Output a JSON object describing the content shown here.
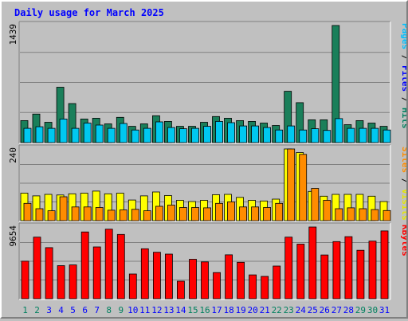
{
  "chart_data": {
    "type": "bar",
    "title": "Daily usage for March 2025",
    "x": [
      "1",
      "2",
      "3",
      "4",
      "5",
      "6",
      "7",
      "8",
      "9",
      "10",
      "11",
      "12",
      "13",
      "14",
      "15",
      "16",
      "17",
      "18",
      "19",
      "20",
      "21",
      "22",
      "23",
      "24",
      "25",
      "26",
      "27",
      "28",
      "29",
      "30",
      "31"
    ],
    "weekend_days": [
      "1",
      "2",
      "8",
      "9",
      "15",
      "16",
      "22",
      "23",
      "29",
      "30"
    ],
    "panels": [
      {
        "ymax_label": "1439",
        "ylim": [
          0,
          1439
        ],
        "series": [
          {
            "name": "Hits",
            "color": "#1a7f5a",
            "values": [
              270,
              350,
              250,
              680,
              480,
              290,
              300,
              230,
              310,
              200,
              230,
              330,
              260,
              200,
              200,
              250,
              320,
              300,
              270,
              260,
              240,
              210,
              630,
              490,
              280,
              280,
              1439,
              220,
              270,
              240,
              200
            ]
          },
          {
            "name": "Files",
            "color": "#00c8f0",
            "values": [
              175,
              195,
              175,
              290,
              175,
              240,
              215,
              175,
              235,
              155,
              175,
              255,
              185,
              170,
              175,
              200,
              260,
              245,
              205,
              205,
              185,
              155,
              205,
              155,
              170,
              150,
              295,
              175,
              175,
              175,
              155
            ]
          }
        ]
      },
      {
        "ymax_label": "240",
        "ylim": [
          0,
          240
        ],
        "series": [
          {
            "name": "Visits",
            "color": "#ffff00",
            "values": [
              92,
              83,
              88,
              86,
              90,
              92,
              99,
              90,
              92,
              69,
              83,
              96,
              84,
              68,
              64,
              68,
              87,
              88,
              78,
              68,
              66,
              72,
              240,
              228,
              98,
              82,
              88,
              88,
              88,
              82,
              64
            ]
          },
          {
            "name": "Sites",
            "color": "#ff8c00",
            "values": [
              58,
              40,
              33,
              80,
              46,
              46,
              44,
              35,
              36,
              38,
              33,
              48,
              52,
              44,
              44,
              43,
              58,
              63,
              46,
              46,
              44,
              58,
              240,
              222,
              108,
              68,
              40,
              43,
              40,
              37,
              34
            ]
          }
        ]
      },
      {
        "ymax_label": "9654",
        "ylim": [
          0,
          9654
        ],
        "series": [
          {
            "name": "KBytes",
            "color": "#ff0000",
            "values": [
              5050,
              8290,
              6880,
              4450,
              4550,
              8990,
              6970,
              9360,
              8660,
              3320,
              6730,
              6250,
              6010,
              2360,
              5310,
              4960,
              3520,
              5910,
              4900,
              3210,
              3000,
              4400,
              8290,
              7350,
              9654,
              5890,
              7690,
              8360,
              6520,
              7760,
              9130
            ]
          }
        ]
      }
    ],
    "right_labels": [
      {
        "parts": [
          {
            "text": "Pages",
            "color": "#00bfff"
          },
          {
            "text": " / ",
            "color": "#000000"
          },
          {
            "text": "Files",
            "color": "#0000ff"
          },
          {
            "text": " / ",
            "color": "#000000"
          },
          {
            "text": "Hits",
            "color": "#00805f"
          }
        ]
      },
      {
        "parts": [
          {
            "text": "Sites",
            "color": "#ff8c00"
          },
          {
            "text": " / ",
            "color": "#000000"
          },
          {
            "text": "Visits",
            "color": "#e6e600"
          }
        ]
      },
      {
        "parts": [
          {
            "text": "KBytes",
            "color": "#ff0000"
          }
        ]
      }
    ],
    "colors": {
      "title": "#0000ff",
      "weekday_label": "#0000ff",
      "weekend_label": "#00805f",
      "plot_bg": "#c0c0c0",
      "grid": "#808080"
    }
  }
}
